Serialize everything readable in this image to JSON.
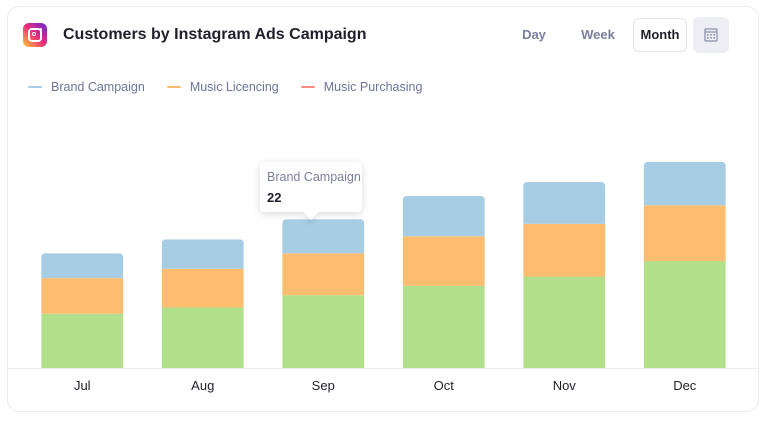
{
  "header": {
    "title": "Customers by Instagram Ads Campaign",
    "icon": "instagram-icon"
  },
  "range_buttons": [
    "Day",
    "Week",
    "Month"
  ],
  "active_range": "Month",
  "calendar_icon": "calendar-icon",
  "tooltip": {
    "series": "Brand Campaign",
    "value": "22"
  },
  "chart_data": {
    "type": "bar",
    "stacked": true,
    "categories": [
      "Jul",
      "Aug",
      "Sep",
      "Oct",
      "Nov",
      "Dec"
    ],
    "series": [
      {
        "name": "Brand Campaign",
        "color": "#a7cde4",
        "values": [
          16,
          19,
          22,
          26,
          27,
          28
        ]
      },
      {
        "name": "Music Licencing",
        "color": "#fdbd71",
        "values": [
          23,
          25,
          27,
          32,
          34,
          36
        ]
      },
      {
        "name": "Music Purchasing",
        "color": "#f28b82",
        "values": [
          0,
          0,
          0,
          0,
          0,
          0
        ]
      },
      {
        "name": "",
        "color": "#b2df8a",
        "values": [
          35,
          39,
          47,
          53,
          59,
          69
        ]
      }
    ],
    "ylim": [
      0,
      160
    ],
    "grid": false,
    "legend": "top-left"
  }
}
